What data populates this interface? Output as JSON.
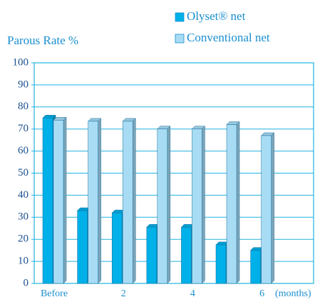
{
  "chart_data": {
    "type": "bar",
    "ylabel": "Parous Rate %",
    "xlabel": "(months)",
    "categories": [
      "Before",
      null,
      "2",
      null,
      "4",
      null,
      "6"
    ],
    "series": [
      {
        "name": "Olyset® net",
        "color": "#00b0e8",
        "values": [
          75,
          33,
          32,
          25.5,
          25.5,
          17.5,
          15
        ]
      },
      {
        "name": "Conventional net",
        "color": "#a8dcf4",
        "values": [
          74,
          73.5,
          73.5,
          70,
          70,
          72,
          67
        ]
      }
    ],
    "ylim": [
      0,
      100
    ],
    "yticks": [
      0,
      10,
      20,
      30,
      40,
      50,
      60,
      70,
      80,
      90,
      100
    ],
    "grid": true
  }
}
